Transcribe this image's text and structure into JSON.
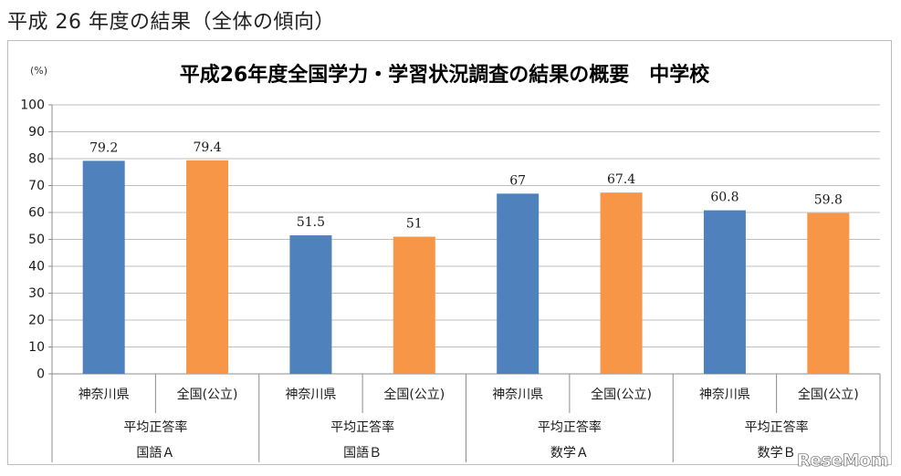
{
  "page": {
    "heading": "平成 26 年度の結果（全体の傾向）",
    "watermark": "ReseMom"
  },
  "chart_data": {
    "type": "bar",
    "title": "平成26年度全国学力・学習状況調査の結果の概要　中学校",
    "ylabel": "(%)",
    "ylim": [
      0,
      100
    ],
    "yticks": [
      0,
      10,
      20,
      30,
      40,
      50,
      60,
      70,
      80,
      90,
      100
    ],
    "grid": true,
    "legend": "none",
    "categories": [
      {
        "label": "神奈川県",
        "metric": "平均正答率",
        "group": "国語Ａ",
        "value": 79.2,
        "value_label": "79.2",
        "color": "#4f81bd"
      },
      {
        "label": "全国(公立)",
        "metric": "平均正答率",
        "group": "国語Ａ",
        "value": 79.4,
        "value_label": "79.4",
        "color": "#f79646"
      },
      {
        "label": "神奈川県",
        "metric": "平均正答率",
        "group": "国語Ｂ",
        "value": 51.5,
        "value_label": "51.5",
        "color": "#4f81bd"
      },
      {
        "label": "全国(公立)",
        "metric": "平均正答率",
        "group": "国語Ｂ",
        "value": 51,
        "value_label": "51",
        "color": "#f79646"
      },
      {
        "label": "神奈川県",
        "metric": "平均正答率",
        "group": "数学Ａ",
        "value": 67,
        "value_label": "67",
        "color": "#4f81bd"
      },
      {
        "label": "全国(公立)",
        "metric": "平均正答率",
        "group": "数学Ａ",
        "value": 67.4,
        "value_label": "67.4",
        "color": "#f79646"
      },
      {
        "label": "神奈川県",
        "metric": "平均正答率",
        "group": "数学Ｂ",
        "value": 60.8,
        "value_label": "60.8",
        "color": "#4f81bd"
      },
      {
        "label": "全国(公立)",
        "metric": "平均正答率",
        "group": "数学Ｂ",
        "value": 59.8,
        "value_label": "59.8",
        "color": "#f79646"
      }
    ],
    "groups": [
      {
        "metric": "平均正答率",
        "subject": "国語Ａ"
      },
      {
        "metric": "平均正答率",
        "subject": "国語Ｂ"
      },
      {
        "metric": "平均正答率",
        "subject": "数学Ａ"
      },
      {
        "metric": "平均正答率",
        "subject": "数学Ｂ"
      }
    ]
  }
}
